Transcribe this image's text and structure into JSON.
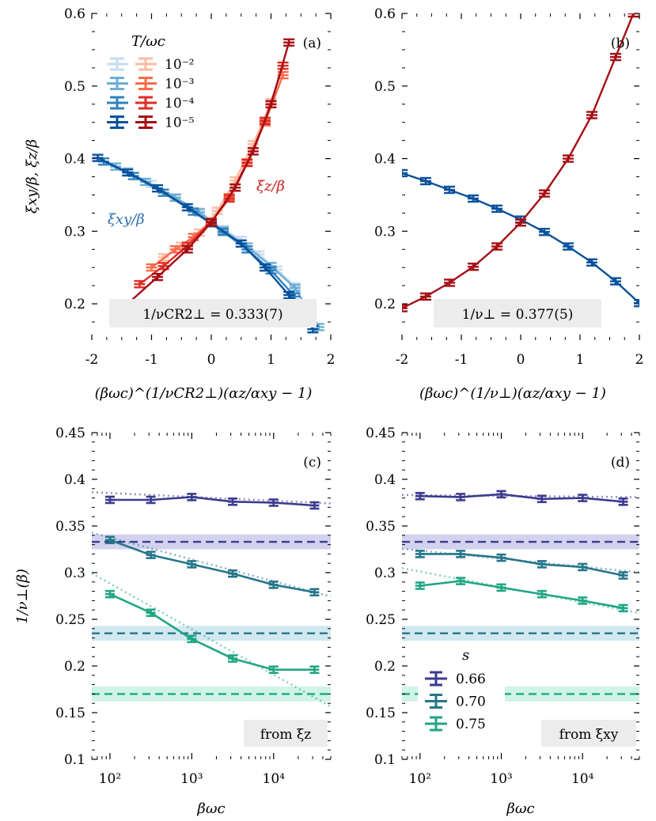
{
  "colors": {
    "blues": [
      "#c6dbef",
      "#6baed6",
      "#3182bd",
      "#08519c"
    ],
    "reds": [
      "#fcbba1",
      "#fb6a4a",
      "#de2d26",
      "#a50f15"
    ],
    "s066": "#3b3b8f",
    "s070": "#25768a",
    "s075": "#21a685",
    "s066_band": "#c7c7ea",
    "s070_band": "#c6e2ec",
    "s075_band": "#c3f1e0"
  },
  "legend_top": {
    "title": "T/ωc",
    "entries": [
      "10⁻²",
      "10⁻³",
      "10⁻⁴",
      "10⁻⁵"
    ]
  },
  "legend_bottom": {
    "title": "s",
    "entries": [
      "0.66",
      "0.70",
      "0.75"
    ]
  },
  "chart_data": [
    {
      "panel": "(a)",
      "type": "line",
      "ylabel": "ξxy/β,  ξz/β",
      "xlabel": "(βωc)^(1/νCR2⊥)(αz/αxy − 1)",
      "xlim": [
        -2,
        2
      ],
      "ylim": [
        0.15,
        0.6
      ],
      "xticks": [
        -2,
        -1,
        0,
        1,
        2
      ],
      "yticks": [
        0.2,
        0.3,
        0.4,
        0.5,
        0.6
      ],
      "annotation": "1/νCR2⊥ = 0.333(7)",
      "label_xi_xy": "ξxy/β",
      "label_xi_z": "ξz/β",
      "series": [
        {
          "group": "xy",
          "shade": 0,
          "x": [
            -1.4,
            -1.0,
            -0.6,
            -0.2,
            0.2,
            0.5,
            0.8,
            1.1,
            1.4
          ],
          "y": [
            0.383,
            0.365,
            0.347,
            0.327,
            0.303,
            0.288,
            0.268,
            0.247,
            0.224
          ]
        },
        {
          "group": "xy",
          "shade": 1,
          "x": [
            -1.6,
            -1.1,
            -0.6,
            -0.2,
            0.2,
            0.6,
            1.0,
            1.4,
            1.8
          ],
          "y": [
            0.389,
            0.368,
            0.346,
            0.326,
            0.301,
            0.279,
            0.252,
            0.222,
            0.168
          ]
        },
        {
          "group": "xy",
          "shade": 2,
          "x": [
            -1.8,
            -1.3,
            -0.8,
            -0.3,
            0.2,
            0.6,
            1.0,
            1.4
          ],
          "y": [
            0.396,
            0.376,
            0.353,
            0.327,
            0.299,
            0.275,
            0.246,
            0.21
          ]
        },
        {
          "group": "xy",
          "shade": 3,
          "x": [
            -1.9,
            -1.4,
            -0.9,
            -0.4,
            0.0,
            0.5,
            0.9,
            1.3,
            1.7
          ],
          "y": [
            0.401,
            0.381,
            0.359,
            0.333,
            0.311,
            0.283,
            0.25,
            0.212,
            0.165
          ]
        },
        {
          "group": "z",
          "shade": 0,
          "x": [
            -0.8,
            -0.5,
            -0.2,
            0.1,
            0.4,
            0.7,
            1.0
          ],
          "y": [
            0.264,
            0.28,
            0.298,
            0.328,
            0.37,
            0.42,
            0.478
          ]
        },
        {
          "group": "z",
          "shade": 1,
          "x": [
            -1.0,
            -0.6,
            -0.3,
            0.0,
            0.3,
            0.6,
            0.9,
            1.2
          ],
          "y": [
            0.25,
            0.275,
            0.292,
            0.313,
            0.347,
            0.395,
            0.45,
            0.515
          ]
        },
        {
          "group": "z",
          "shade": 2,
          "x": [
            -1.2,
            -0.8,
            -0.4,
            0.0,
            0.3,
            0.6,
            0.9,
            1.2
          ],
          "y": [
            0.227,
            0.252,
            0.28,
            0.313,
            0.345,
            0.394,
            0.452,
            0.528
          ]
        },
        {
          "group": "z",
          "shade": 3,
          "x": [
            -1.4,
            -0.9,
            -0.4,
            0.0,
            0.4,
            0.7,
            1.0,
            1.3
          ],
          "y": [
            0.2,
            0.237,
            0.275,
            0.312,
            0.36,
            0.41,
            0.475,
            0.56
          ]
        }
      ]
    },
    {
      "panel": "(b)",
      "type": "line",
      "xlabel": "(βωc)^(1/ν⊥)(αz/αxy − 1)",
      "xlim": [
        -2,
        2
      ],
      "ylim": [
        0.15,
        0.6
      ],
      "xticks": [
        -2,
        -1,
        0,
        1,
        2
      ],
      "yticks": [
        0.2,
        0.3,
        0.4,
        0.5,
        0.6
      ],
      "annotation": "1/ν⊥ = 0.377(5)",
      "series": [
        {
          "group": "xy",
          "shade": 3,
          "x": [
            -2.0,
            -1.6,
            -1.2,
            -0.8,
            -0.4,
            0.0,
            0.4,
            0.8,
            1.2,
            1.6,
            2.0
          ],
          "y": [
            0.38,
            0.369,
            0.357,
            0.345,
            0.331,
            0.316,
            0.299,
            0.279,
            0.257,
            0.231,
            0.201
          ]
        },
        {
          "group": "z",
          "shade": 3,
          "x": [
            -2.0,
            -1.6,
            -1.2,
            -0.8,
            -0.4,
            0.0,
            0.4,
            0.8,
            1.2,
            1.6,
            1.9
          ],
          "y": [
            0.194,
            0.21,
            0.229,
            0.251,
            0.279,
            0.312,
            0.352,
            0.4,
            0.46,
            0.54,
            0.6
          ]
        }
      ]
    },
    {
      "panel": "(c)",
      "type": "line",
      "ylabel": "1/ν⊥(β)",
      "xlabel": "βωc",
      "xscale": "log",
      "xlim": [
        60,
        50000
      ],
      "ylim": [
        0.1,
        0.45
      ],
      "xticks": [
        "10²",
        "10³",
        "10⁴"
      ],
      "yticks": [
        0.1,
        0.15,
        0.2,
        0.25,
        0.3,
        0.35,
        0.4,
        0.45
      ],
      "annotation": "from ξz",
      "series": [
        {
          "s": "0.66",
          "x": [
            100,
            316,
            1000,
            3162,
            10000,
            31623
          ],
          "y": [
            0.378,
            0.378,
            0.381,
            0.376,
            0.375,
            0.372
          ],
          "fit": [
            0.385,
            0.375
          ],
          "ref": 0.333
        },
        {
          "s": "0.70",
          "x": [
            100,
            316,
            1000,
            3162,
            10000,
            31623
          ],
          "y": [
            0.335,
            0.319,
            0.309,
            0.299,
            0.287,
            0.279
          ],
          "fit": [
            0.336,
            0.279
          ],
          "ref": 0.235
        },
        {
          "s": "0.75",
          "x": [
            100,
            316,
            1000,
            3162,
            10000,
            31623
          ],
          "y": [
            0.277,
            0.257,
            0.229,
            0.208,
            0.196,
            0.196
          ],
          "fit": [
            0.285,
            0.166
          ],
          "ref": 0.17
        }
      ]
    },
    {
      "panel": "(d)",
      "type": "line",
      "xlabel": "βωc",
      "xscale": "log",
      "xlim": [
        60,
        50000
      ],
      "ylim": [
        0.1,
        0.45
      ],
      "xticks": [
        "10²",
        "10³",
        "10⁴"
      ],
      "yticks": [
        0.1,
        0.15,
        0.2,
        0.25,
        0.3,
        0.35,
        0.4,
        0.45
      ],
      "annotation": "from ξxy",
      "series": [
        {
          "s": "0.66",
          "x": [
            100,
            316,
            1000,
            3162,
            10000,
            31623
          ],
          "y": [
            0.382,
            0.381,
            0.384,
            0.379,
            0.38,
            0.376
          ],
          "fit": [
            0.383,
            0.381
          ],
          "ref": 0.333
        },
        {
          "s": "0.70",
          "x": [
            100,
            316,
            1000,
            3162,
            10000,
            31623
          ],
          "y": [
            0.32,
            0.32,
            0.316,
            0.309,
            0.306,
            0.297
          ],
          "fit": [
            0.323,
            0.302
          ],
          "ref": 0.235
        },
        {
          "s": "0.75",
          "x": [
            100,
            316,
            1000,
            3162,
            10000,
            31623
          ],
          "y": [
            0.286,
            0.291,
            0.284,
            0.277,
            0.27,
            0.262
          ],
          "fit": [
            0.3,
            0.26
          ],
          "ref": 0.17
        }
      ]
    }
  ]
}
